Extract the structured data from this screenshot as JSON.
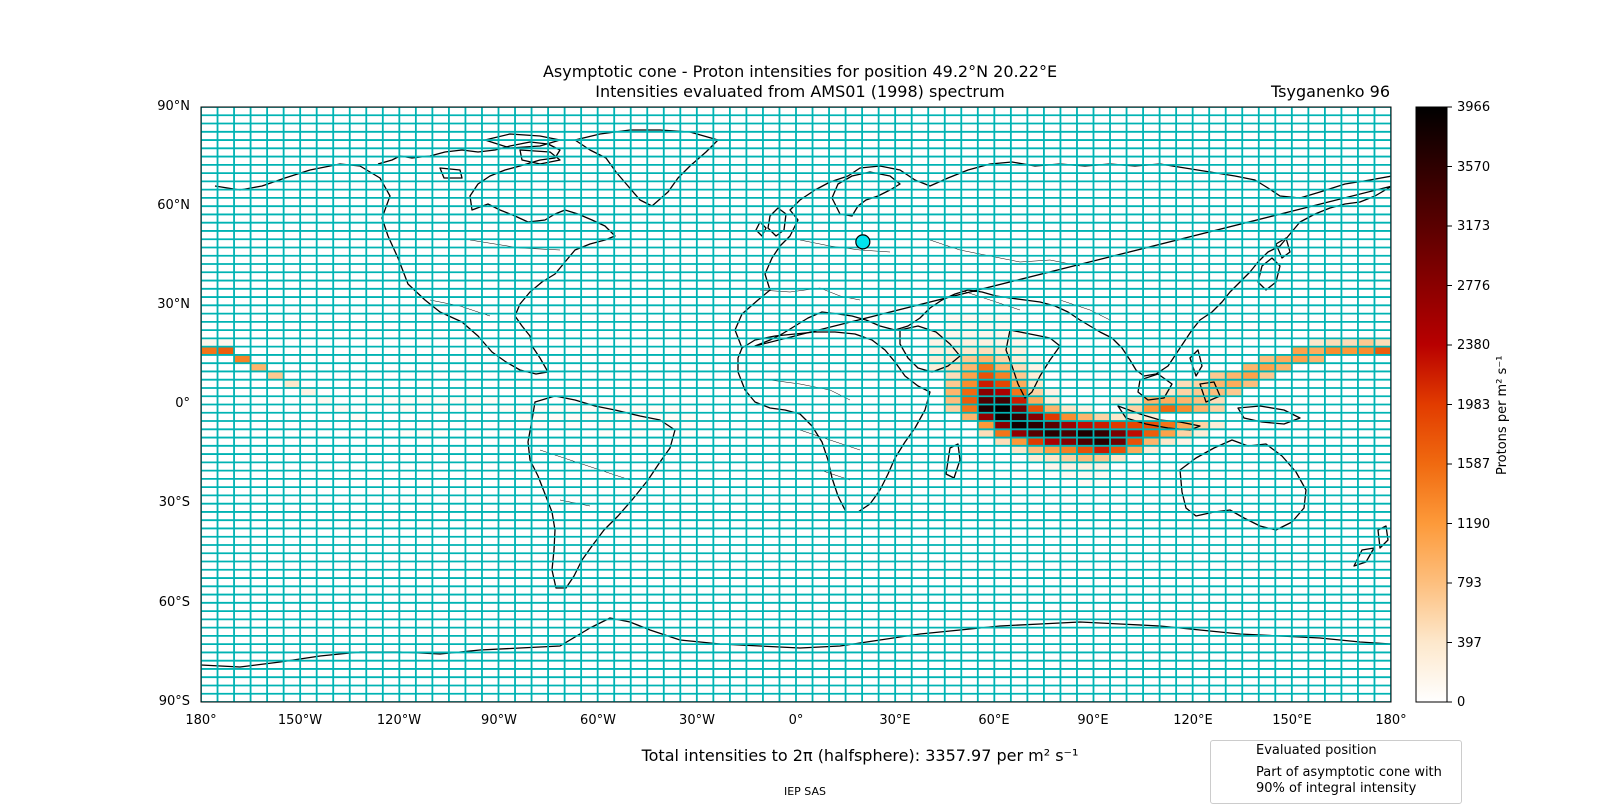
{
  "title": {
    "line1": "Asymptotic cone - Proton intensities for position 49.2°N 20.22°E",
    "line2": "Intensities evaluated from AMS01 (1998) spectrum",
    "model": "Tsyganenko 96"
  },
  "axes": {
    "lat_ticks": [
      "90°N",
      "60°N",
      "30°N",
      "0°",
      "30°S",
      "60°S",
      "90°S"
    ],
    "lon_ticks": [
      "180°",
      "150°W",
      "120°W",
      "90°W",
      "60°W",
      "30°W",
      "0°",
      "30°E",
      "60°E",
      "90°E",
      "120°E",
      "150°E",
      "180°"
    ]
  },
  "colorbar": {
    "label": "Protons per m² s⁻¹",
    "ticks": [
      "0",
      "397",
      "793",
      "1190",
      "1587",
      "1983",
      "2380",
      "2776",
      "3173",
      "3570",
      "3966"
    ],
    "max": 3966
  },
  "total_text": "Total intensities to 2π (halfsphere): 3357.97 per m² s⁻¹",
  "legend": {
    "evaluated": "Evaluated position",
    "cone_line1": "Part of asymptotic cone with",
    "cone_line2": "90% of integral intensity"
  },
  "footer": "IEP SAS",
  "colors": {
    "grid": "#00b3b3",
    "marker": "#00e5ee",
    "cone_outline": "#00ff00",
    "coast": "#000000"
  },
  "chart_data": {
    "type": "heatmap",
    "title": "Asymptotic cone - Proton intensities for position 49.2°N 20.22°E",
    "subtitle": "Intensities evaluated from AMS01 (1998) spectrum",
    "xlim": [
      -180,
      180
    ],
    "ylim": [
      -90,
      90
    ],
    "cell_deg": [
      5,
      2.5
    ],
    "station": {
      "lat": 49.2,
      "lon": 20.22
    },
    "cells": [
      [
        -180,
        17.5,
        150
      ],
      [
        -175,
        17.5,
        150
      ],
      [
        -180,
        15,
        1500
      ],
      [
        -175,
        15,
        1700
      ],
      [
        -170,
        12.5,
        1400
      ],
      [
        -165,
        10,
        900
      ],
      [
        -160,
        7.5,
        700
      ],
      [
        -155,
        5,
        400
      ],
      [
        -150,
        2.5,
        200
      ],
      [
        -145,
        0,
        120
      ],
      [
        -140,
        -2.5,
        80
      ],
      [
        -135,
        -5,
        60
      ],
      [
        -130,
        0,
        60
      ],
      [
        -125,
        0,
        60
      ],
      [
        -120,
        0,
        60
      ],
      [
        -115,
        0,
        60
      ],
      [
        -110,
        0,
        60
      ],
      [
        -105,
        0,
        60
      ],
      [
        -100,
        0,
        60
      ],
      [
        -95,
        0,
        60
      ],
      [
        -120,
        -2.5,
        60
      ],
      [
        -110,
        -2.5,
        60
      ],
      [
        -100,
        -2.5,
        60
      ],
      [
        -90,
        -2.5,
        60
      ],
      [
        -85,
        -2.5,
        60
      ],
      [
        -80,
        -2.5,
        60
      ],
      [
        -75,
        -2.5,
        60
      ],
      [
        -70,
        -2.5,
        60
      ],
      [
        -65,
        -2.5,
        60
      ],
      [
        -60,
        -2.5,
        60
      ],
      [
        -55,
        -2.5,
        60
      ],
      [
        -50,
        -2.5,
        60
      ],
      [
        -45,
        -2.5,
        60
      ],
      [
        -40,
        -2.5,
        60
      ],
      [
        -85,
        -5,
        60
      ],
      [
        -80,
        -5,
        60
      ],
      [
        -75,
        -5,
        60
      ],
      [
        -70,
        -5,
        60
      ],
      [
        -65,
        -5,
        60
      ],
      [
        -60,
        -5,
        60
      ],
      [
        -55,
        -5,
        60
      ],
      [
        -50,
        -5,
        60
      ],
      [
        -45,
        -5,
        60
      ],
      [
        -40,
        -5,
        60
      ],
      [
        -35,
        -5,
        60
      ],
      [
        -80,
        -7.5,
        50
      ],
      [
        -70,
        -7.5,
        50
      ],
      [
        -60,
        -7.5,
        50
      ],
      [
        -50,
        -7.5,
        50
      ],
      [
        -40,
        -7.5,
        50
      ],
      [
        -35,
        -7.5,
        50
      ],
      [
        -120,
        -10,
        40
      ],
      [
        -115,
        -10,
        40
      ],
      [
        -110,
        -10,
        40
      ],
      [
        -60,
        -10,
        40
      ],
      [
        -50,
        -10,
        40
      ],
      [
        -40,
        -10,
        40
      ],
      [
        -35,
        -10,
        40
      ],
      [
        45,
        25,
        100
      ],
      [
        50,
        25,
        100
      ],
      [
        55,
        25,
        100
      ],
      [
        60,
        25,
        100
      ],
      [
        45,
        22.5,
        100
      ],
      [
        50,
        22.5,
        100
      ],
      [
        55,
        22.5,
        100
      ],
      [
        60,
        22.5,
        100
      ],
      [
        40,
        20,
        150
      ],
      [
        45,
        20,
        150
      ],
      [
        50,
        20,
        150
      ],
      [
        55,
        20,
        150
      ],
      [
        60,
        20,
        150
      ],
      [
        65,
        20,
        150
      ],
      [
        40,
        17.5,
        200
      ],
      [
        45,
        17.5,
        200
      ],
      [
        50,
        17.5,
        250
      ],
      [
        55,
        17.5,
        250
      ],
      [
        60,
        17.5,
        200
      ],
      [
        65,
        17.5,
        150
      ],
      [
        40,
        15,
        250
      ],
      [
        45,
        15,
        300
      ],
      [
        50,
        15,
        400
      ],
      [
        55,
        15,
        500
      ],
      [
        60,
        15,
        400
      ],
      [
        65,
        15,
        250
      ],
      [
        40,
        12.5,
        300
      ],
      [
        45,
        12.5,
        400
      ],
      [
        50,
        12.5,
        700
      ],
      [
        55,
        12.5,
        900
      ],
      [
        60,
        12.5,
        600
      ],
      [
        65,
        12.5,
        300
      ],
      [
        70,
        12.5,
        150
      ],
      [
        40,
        10,
        300
      ],
      [
        45,
        10,
        500
      ],
      [
        50,
        10,
        900
      ],
      [
        55,
        10,
        1500
      ],
      [
        60,
        10,
        900
      ],
      [
        65,
        10,
        500
      ],
      [
        70,
        10,
        200
      ],
      [
        45,
        7.5,
        500
      ],
      [
        50,
        7.5,
        1100
      ],
      [
        55,
        7.5,
        1800
      ],
      [
        60,
        7.5,
        1400
      ],
      [
        65,
        7.5,
        700
      ],
      [
        70,
        7.5,
        300
      ],
      [
        45,
        5,
        700
      ],
      [
        50,
        5,
        1300
      ],
      [
        55,
        5,
        2200
      ],
      [
        60,
        5,
        1900
      ],
      [
        65,
        5,
        1000
      ],
      [
        70,
        5,
        400
      ],
      [
        45,
        2.5,
        900
      ],
      [
        50,
        2.5,
        1600
      ],
      [
        55,
        2.5,
        2800
      ],
      [
        60,
        2.5,
        2500
      ],
      [
        65,
        2.5,
        1500
      ],
      [
        70,
        2.5,
        600
      ],
      [
        75,
        2.5,
        200
      ],
      [
        45,
        0,
        800
      ],
      [
        50,
        0,
        1700
      ],
      [
        55,
        0,
        3300
      ],
      [
        60,
        0,
        3400
      ],
      [
        65,
        0,
        2200
      ],
      [
        70,
        0,
        1000
      ],
      [
        75,
        0,
        300
      ],
      [
        45,
        -2.5,
        600
      ],
      [
        50,
        -2.5,
        1500
      ],
      [
        55,
        -2.5,
        3700
      ],
      [
        60,
        -2.5,
        3966
      ],
      [
        65,
        -2.5,
        3000
      ],
      [
        70,
        -2.5,
        1800
      ],
      [
        75,
        -2.5,
        900
      ],
      [
        80,
        -2.5,
        400
      ],
      [
        85,
        -2.5,
        200
      ],
      [
        50,
        -5,
        900
      ],
      [
        55,
        -5,
        2700
      ],
      [
        60,
        -5,
        3800
      ],
      [
        65,
        -5,
        3500
      ],
      [
        70,
        -5,
        2800
      ],
      [
        75,
        -5,
        2000
      ],
      [
        80,
        -5,
        1300
      ],
      [
        85,
        -5,
        900
      ],
      [
        90,
        -5,
        600
      ],
      [
        95,
        -5,
        400
      ],
      [
        100,
        -5,
        300
      ],
      [
        105,
        -5,
        300
      ],
      [
        55,
        -7.5,
        1200
      ],
      [
        60,
        -7.5,
        2800
      ],
      [
        65,
        -7.5,
        3800
      ],
      [
        70,
        -7.5,
        3600
      ],
      [
        75,
        -7.5,
        3200
      ],
      [
        80,
        -7.5,
        2600
      ],
      [
        85,
        -7.5,
        2300
      ],
      [
        90,
        -7.5,
        2200
      ],
      [
        95,
        -7.5,
        2000
      ],
      [
        100,
        -7.5,
        1900
      ],
      [
        105,
        -7.5,
        1800
      ],
      [
        110,
        -7.5,
        1500
      ],
      [
        115,
        -7.5,
        1000
      ],
      [
        120,
        -7.5,
        600
      ],
      [
        125,
        -7.5,
        300
      ],
      [
        55,
        -10,
        500
      ],
      [
        60,
        -10,
        1500
      ],
      [
        65,
        -10,
        2700
      ],
      [
        70,
        -10,
        3200
      ],
      [
        75,
        -10,
        3600
      ],
      [
        80,
        -10,
        3300
      ],
      [
        85,
        -10,
        3700
      ],
      [
        90,
        -10,
        3500
      ],
      [
        95,
        -10,
        2900
      ],
      [
        100,
        -10,
        2300
      ],
      [
        105,
        -10,
        1700
      ],
      [
        110,
        -10,
        1100
      ],
      [
        115,
        -10,
        600
      ],
      [
        120,
        -10,
        300
      ],
      [
        60,
        -12.5,
        500
      ],
      [
        65,
        -12.5,
        1200
      ],
      [
        70,
        -12.5,
        2000
      ],
      [
        75,
        -12.5,
        2500
      ],
      [
        80,
        -12.5,
        2800
      ],
      [
        85,
        -12.5,
        3300
      ],
      [
        90,
        -12.5,
        3600
      ],
      [
        95,
        -12.5,
        3000
      ],
      [
        100,
        -12.5,
        1800
      ],
      [
        105,
        -12.5,
        900
      ],
      [
        110,
        -12.5,
        400
      ],
      [
        115,
        -12.5,
        200
      ],
      [
        65,
        -15,
        400
      ],
      [
        70,
        -15,
        800
      ],
      [
        75,
        -15,
        1100
      ],
      [
        80,
        -15,
        1400
      ],
      [
        85,
        -15,
        1800
      ],
      [
        90,
        -15,
        2200
      ],
      [
        95,
        -15,
        1800
      ],
      [
        100,
        -15,
        1000
      ],
      [
        105,
        -15,
        300
      ],
      [
        70,
        -17.5,
        300
      ],
      [
        75,
        -17.5,
        400
      ],
      [
        80,
        -17.5,
        600
      ],
      [
        85,
        -17.5,
        800
      ],
      [
        90,
        -17.5,
        700
      ],
      [
        95,
        -17.5,
        400
      ],
      [
        75,
        -20,
        150
      ],
      [
        80,
        -20,
        200
      ],
      [
        85,
        -20,
        250
      ],
      [
        90,
        -20,
        200
      ],
      [
        80,
        -22.5,
        100
      ],
      [
        85,
        -22.5,
        100
      ],
      [
        90,
        -22.5,
        100
      ],
      [
        85,
        -25,
        80
      ],
      [
        90,
        -25,
        60
      ],
      [
        95,
        0,
        200
      ],
      [
        100,
        0,
        400
      ],
      [
        105,
        0,
        900
      ],
      [
        110,
        0,
        1000
      ],
      [
        115,
        0,
        900
      ],
      [
        120,
        0,
        800
      ],
      [
        125,
        0,
        500
      ],
      [
        100,
        -2.5,
        600
      ],
      [
        105,
        -2.5,
        1200
      ],
      [
        110,
        -2.5,
        1600
      ],
      [
        115,
        -2.5,
        1300
      ],
      [
        120,
        -2.5,
        900
      ],
      [
        125,
        -2.5,
        600
      ],
      [
        110,
        2.5,
        400
      ],
      [
        115,
        2.5,
        600
      ],
      [
        120,
        2.5,
        700
      ],
      [
        125,
        2.5,
        800
      ],
      [
        130,
        2.5,
        700
      ],
      [
        115,
        5,
        500
      ],
      [
        120,
        5,
        600
      ],
      [
        125,
        5,
        900
      ],
      [
        130,
        5,
        1000
      ],
      [
        135,
        5,
        800
      ],
      [
        125,
        7.5,
        700
      ],
      [
        130,
        7.5,
        900
      ],
      [
        135,
        7.5,
        1100
      ],
      [
        140,
        7.5,
        700
      ],
      [
        135,
        10,
        900
      ],
      [
        140,
        10,
        1100
      ],
      [
        145,
        10,
        900
      ],
      [
        140,
        12.5,
        800
      ],
      [
        145,
        12.5,
        1000
      ],
      [
        150,
        12.5,
        1100
      ],
      [
        155,
        12.5,
        900
      ],
      [
        150,
        15,
        1100
      ],
      [
        155,
        15,
        1000
      ],
      [
        160,
        15,
        1300
      ],
      [
        165,
        15,
        1200
      ],
      [
        170,
        15,
        1300
      ],
      [
        175,
        15,
        1700
      ],
      [
        155,
        17.5,
        400
      ],
      [
        160,
        17.5,
        500
      ],
      [
        165,
        17.5,
        500
      ],
      [
        170,
        17.5,
        700
      ],
      [
        175,
        17.5,
        500
      ]
    ]
  }
}
